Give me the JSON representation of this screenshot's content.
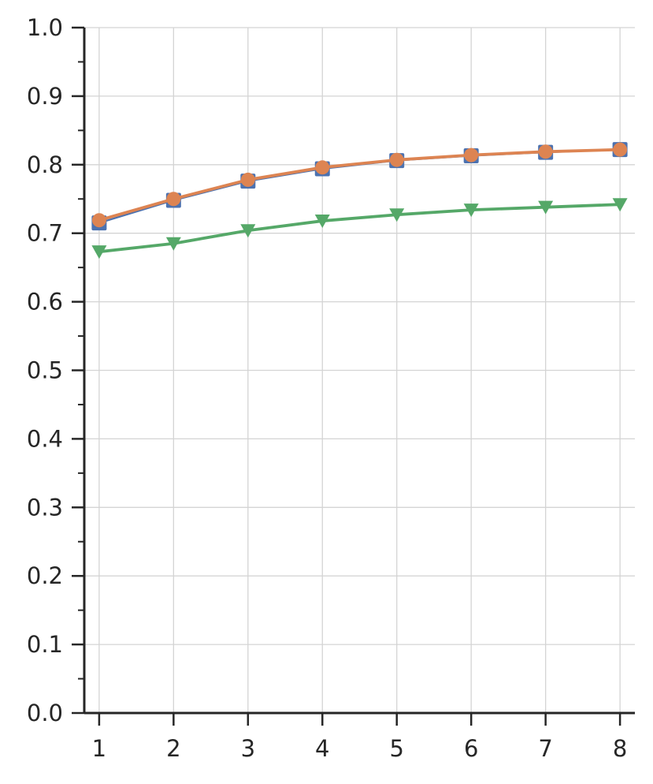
{
  "chart_data": {
    "type": "line",
    "title": "",
    "xlabel": "",
    "ylabel": "",
    "x": [
      1,
      2,
      3,
      4,
      5,
      6,
      7,
      8
    ],
    "xlim": [
      0.8,
      8.2
    ],
    "ylim": [
      0.0,
      1.0
    ],
    "xticks": [
      1,
      2,
      3,
      4,
      5,
      6,
      7,
      8
    ],
    "yticks": [
      0.0,
      0.1,
      0.2,
      0.3,
      0.4,
      0.5,
      0.6,
      0.7,
      0.8,
      0.9,
      1.0
    ],
    "ytick_labels": [
      "0.0",
      "0.1",
      "0.2",
      "0.3",
      "0.4",
      "0.5",
      "0.6",
      "0.7",
      "0.8",
      "0.9",
      "1.0"
    ],
    "xtick_labels": [
      "1",
      "2",
      "3",
      "4",
      "5",
      "6",
      "7",
      "8"
    ],
    "grid": true,
    "legend": "none",
    "series": [
      {
        "color": "#4c72b0",
        "marker": "square",
        "values": [
          0.715,
          0.748,
          0.776,
          0.794,
          0.806,
          0.813,
          0.818,
          0.822
        ]
      },
      {
        "color": "#dd8452",
        "marker": "circle",
        "values": [
          0.719,
          0.75,
          0.778,
          0.796,
          0.807,
          0.814,
          0.819,
          0.822
        ]
      },
      {
        "color": "#55a868",
        "marker": "triangle-down",
        "values": [
          0.673,
          0.685,
          0.704,
          0.718,
          0.727,
          0.734,
          0.738,
          0.742
        ]
      }
    ]
  }
}
